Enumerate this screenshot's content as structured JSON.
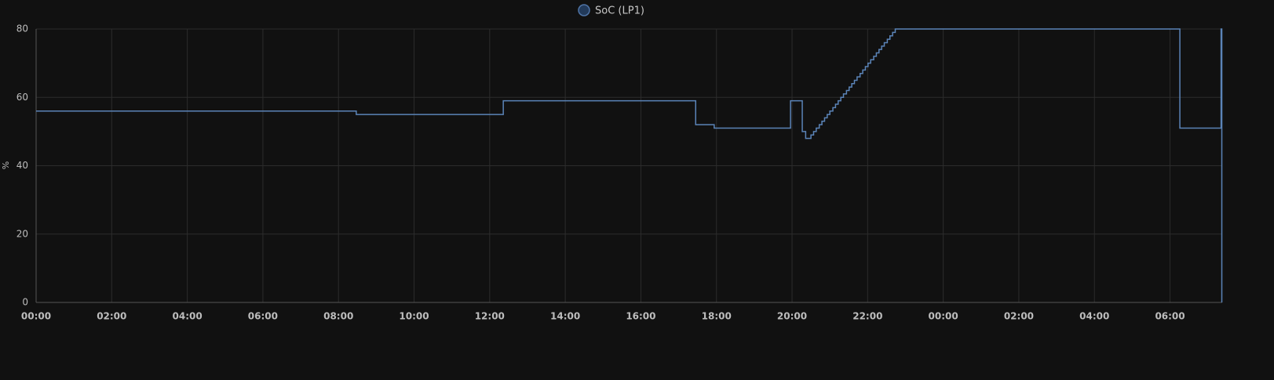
{
  "chart_data": {
    "type": "step",
    "series": [
      {
        "name": "SoC (LP1)",
        "color": "#5b84b8",
        "x": [
          0,
          8.47,
          12.36,
          17.45,
          17.94,
          19.96,
          20.27,
          20.36,
          20.5,
          20.57,
          20.64,
          20.72,
          20.79,
          20.86,
          20.93,
          21.0,
          21.08,
          21.15,
          21.22,
          21.29,
          21.36,
          21.44,
          21.51,
          21.58,
          21.65,
          21.72,
          21.8,
          21.87,
          21.94,
          22.01,
          22.08,
          22.16,
          22.23,
          22.3,
          22.37,
          22.44,
          22.52,
          22.59,
          22.66,
          22.73,
          30.26,
          31.35,
          31.37
        ],
        "values": [
          56,
          55,
          59,
          52,
          51,
          59,
          50,
          48,
          49,
          50,
          51,
          52,
          53,
          54,
          55,
          56,
          57,
          58,
          59,
          60,
          61,
          62,
          63,
          64,
          65,
          66,
          67,
          68,
          69,
          70,
          71,
          72,
          73,
          74,
          75,
          76,
          77,
          78,
          79,
          80,
          51,
          80,
          0
        ]
      }
    ],
    "y_label": "%",
    "xlim": [
      0,
      31.38
    ],
    "ylim": [
      0,
      80
    ],
    "xticks": [
      {
        "value": 0,
        "label": "00:00"
      },
      {
        "value": 2,
        "label": "02:00"
      },
      {
        "value": 4,
        "label": "04:00"
      },
      {
        "value": 6,
        "label": "06:00"
      },
      {
        "value": 8,
        "label": "08:00"
      },
      {
        "value": 10,
        "label": "10:00"
      },
      {
        "value": 12,
        "label": "12:00"
      },
      {
        "value": 14,
        "label": "14:00"
      },
      {
        "value": 16,
        "label": "16:00"
      },
      {
        "value": 18,
        "label": "18:00"
      },
      {
        "value": 20,
        "label": "20:00"
      },
      {
        "value": 22,
        "label": "22:00"
      },
      {
        "value": 24,
        "label": "00:00"
      },
      {
        "value": 26,
        "label": "02:00"
      },
      {
        "value": 28,
        "label": "04:00"
      },
      {
        "value": 30,
        "label": "06:00"
      }
    ],
    "yticks": [
      0,
      20,
      40,
      60,
      80
    ],
    "grid": true
  }
}
